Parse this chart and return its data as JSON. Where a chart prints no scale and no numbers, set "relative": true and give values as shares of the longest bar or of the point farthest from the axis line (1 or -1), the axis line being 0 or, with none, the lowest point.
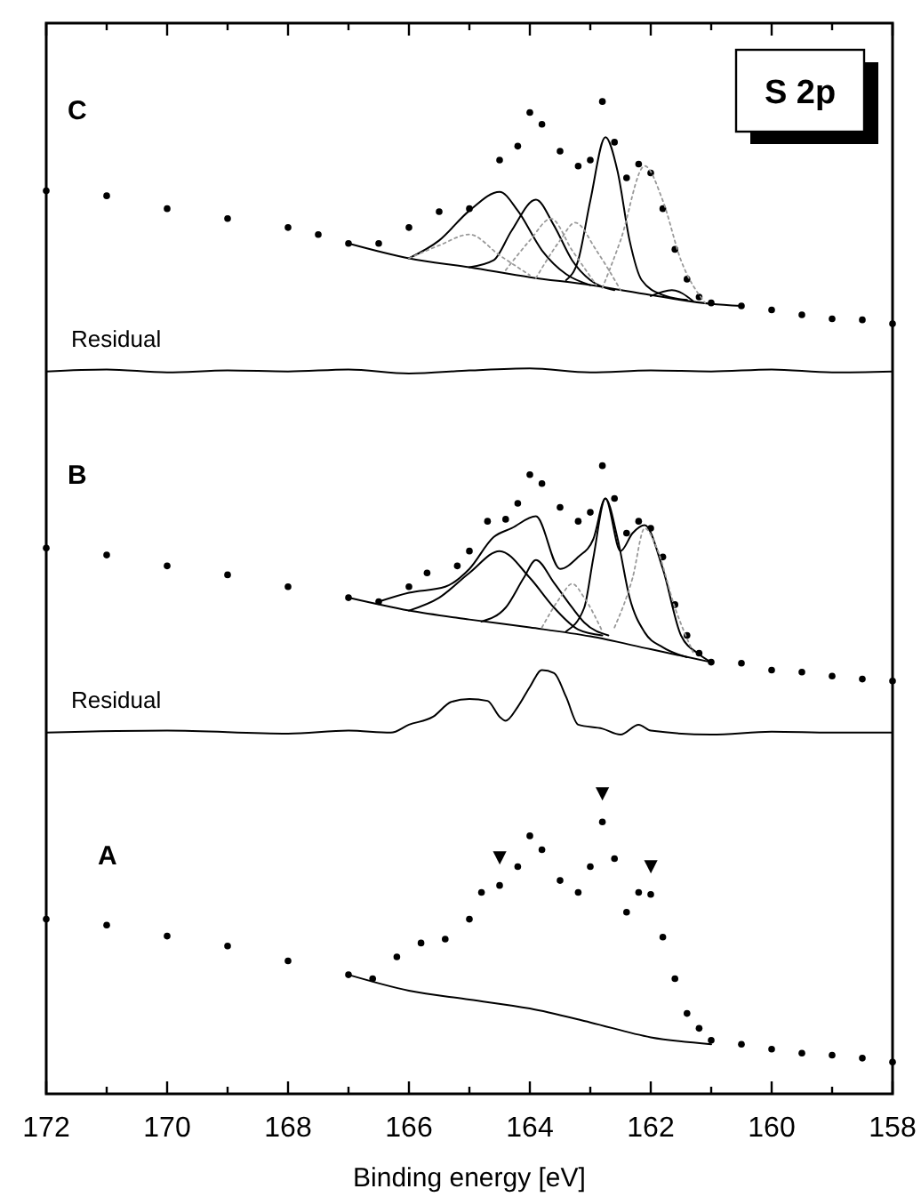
{
  "chart_data": {
    "type": "line",
    "title": "S 2p",
    "xlabel": "Binding energy [eV]",
    "relative": true,
    "xlim": [
      172,
      158
    ],
    "xticks": [
      172,
      {
        "value": 171,
        "label": null
      },
      170,
      {
        "value": 169,
        "label": null
      },
      168,
      {
        "value": 167,
        "label": null
      },
      166,
      {
        "value": 165,
        "label": null
      },
      164,
      {
        "value": 163,
        "label": null
      },
      162,
      {
        "value": 161,
        "label": null
      },
      160,
      {
        "value": 159,
        "label": null
      },
      158
    ],
    "annotations": [
      "C",
      "Residual",
      "B",
      "Residual",
      "A",
      {
        "text": "▼",
        "x": 164.5,
        "y": 0.21
      },
      {
        "text": "▼",
        "x": 162.8,
        "y": 0.274
      },
      {
        "text": "▼",
        "x": 162.0,
        "y": 0.201
      }
    ],
    "series": [
      {
        "type": "scatter",
        "marker": "circle",
        "color": "#000000",
        "x": [
          172,
          171,
          170,
          169,
          168,
          167.5,
          167,
          166.5,
          166,
          165.5,
          165,
          164.5,
          164.2,
          164,
          163.8,
          163.5,
          163.2,
          163,
          162.8,
          162.6,
          162.4,
          162.2,
          162,
          161.8,
          161.6,
          161.4,
          161.2,
          161,
          160.5,
          160,
          159.5,
          159,
          158.5,
          158
        ],
        "values": [
          0.91,
          0.905,
          0.892,
          0.882,
          0.873,
          0.866,
          0.857,
          0.857,
          0.873,
          0.889,
          0.892,
          0.941,
          0.955,
          0.989,
          0.977,
          0.95,
          0.935,
          0.941,
          1.0,
          0.959,
          0.923,
          0.937,
          0.928,
          0.892,
          0.851,
          0.821,
          0.803,
          0.797,
          0.794,
          0.79,
          0.785,
          0.781,
          0.78,
          0.776
        ]
      },
      {
        "color": "#000000",
        "x": [
          167,
          166,
          165,
          164,
          163,
          162,
          161,
          160.5
        ],
        "values": [
          0.857,
          0.842,
          0.833,
          0.823,
          0.815,
          0.805,
          0.796,
          0.794
        ]
      },
      {
        "color": "#000000",
        "x": [
          166,
          165.5,
          165,
          164.5,
          164.2,
          163.8,
          163.4,
          163
        ],
        "values": [
          0.842,
          0.86,
          0.89,
          0.909,
          0.89,
          0.85,
          0.826,
          0.815
        ]
      },
      {
        "color": "#000000",
        "x": [
          165,
          164.6,
          164.3,
          163.9,
          163.6,
          163.3,
          163,
          162.6
        ],
        "values": [
          0.833,
          0.84,
          0.87,
          0.901,
          0.875,
          0.84,
          0.82,
          0.81
        ]
      },
      {
        "color": "#000000",
        "x": [
          163.4,
          163.2,
          163,
          162.75,
          162.55,
          162.35,
          162.15,
          161.8,
          161.4
        ],
        "values": [
          0.82,
          0.84,
          0.9,
          0.964,
          0.93,
          0.86,
          0.82,
          0.805,
          0.8
        ]
      },
      {
        "color": "#000000",
        "x": [
          162,
          161.65,
          161.3
        ],
        "values": [
          0.804,
          0.81,
          0.799
        ]
      },
      {
        "color": "#999999",
        "line_style": "dotted",
        "x": [
          166,
          165.5,
          165,
          164.5,
          164
        ],
        "values": [
          0.842,
          0.855,
          0.866,
          0.845,
          0.825
        ]
      },
      {
        "color": "#999999",
        "line_style": "dotted",
        "x": [
          164.4,
          164,
          163.65,
          163.3,
          162.9
        ],
        "values": [
          0.83,
          0.86,
          0.882,
          0.85,
          0.815
        ]
      },
      {
        "color": "#999999",
        "line_style": "dotted",
        "x": [
          163.9,
          163.5,
          163.25,
          162.9,
          162.5
        ],
        "values": [
          0.822,
          0.86,
          0.878,
          0.85,
          0.81
        ]
      },
      {
        "color": "#999999",
        "line_style": "dotted",
        "x": [
          162.8,
          162.5,
          162.1,
          161.8,
          161.5,
          161.1
        ],
        "values": [
          0.812,
          0.86,
          0.935,
          0.9,
          0.84,
          0.797
        ]
      },
      {
        "color": "#000000",
        "x": [
          172,
          171,
          170,
          169,
          168,
          167,
          166,
          165,
          164,
          163,
          162,
          161,
          160,
          159,
          158
        ],
        "values": [
          0.728,
          0.73,
          0.727,
          0.729,
          0.728,
          0.73,
          0.726,
          0.729,
          0.731,
          0.727,
          0.729,
          0.728,
          0.73,
          0.727,
          0.728
        ]
      },
      {
        "type": "scatter",
        "marker": "circle",
        "color": "#000000",
        "x": [
          172,
          171,
          170,
          169,
          168,
          167,
          166.5,
          166,
          165.7,
          165.2,
          165,
          164.7,
          164.4,
          164.2,
          164,
          163.8,
          163.5,
          163.2,
          163,
          162.8,
          162.6,
          162.4,
          162.2,
          162,
          161.8,
          161.6,
          161.4,
          161.2,
          161,
          160.5,
          160,
          159.5,
          159,
          158.5,
          158
        ],
        "values": [
          0.55,
          0.543,
          0.532,
          0.523,
          0.511,
          0.5,
          0.496,
          0.511,
          0.525,
          0.532,
          0.547,
          0.577,
          0.579,
          0.595,
          0.624,
          0.615,
          0.591,
          0.577,
          0.586,
          0.633,
          0.6,
          0.565,
          0.577,
          0.57,
          0.541,
          0.493,
          0.462,
          0.444,
          0.435,
          0.434,
          0.427,
          0.425,
          0.421,
          0.418,
          0.416
        ]
      },
      {
        "color": "#000000",
        "x": [
          166.5,
          166,
          165.4,
          165,
          164.6,
          164.3,
          163.9,
          163.5,
          163.2,
          162.95,
          162.75,
          162.5,
          162.3,
          162.1,
          161.8,
          161.5,
          161.2,
          161
        ],
        "values": [
          0.496,
          0.505,
          0.511,
          0.529,
          0.561,
          0.57,
          0.582,
          0.529,
          0.541,
          0.559,
          0.6,
          0.547,
          0.565,
          0.573,
          0.529,
          0.462,
          0.443,
          0.435
        ]
      },
      {
        "color": "#000000",
        "x": [
          167,
          166,
          165,
          164,
          163,
          162,
          161
        ],
        "values": [
          0.5,
          0.487,
          0.478,
          0.47,
          0.461,
          0.448,
          0.435
        ]
      },
      {
        "color": "#000000",
        "x": [
          166,
          165.5,
          165,
          164.5,
          164,
          163.6,
          163.2,
          162.8
        ],
        "values": [
          0.487,
          0.5,
          0.525,
          0.547,
          0.52,
          0.49,
          0.468,
          0.462
        ]
      },
      {
        "color": "#000000",
        "x": [
          164.8,
          164.4,
          164.1,
          163.9,
          163.6,
          163.3,
          163.1,
          162.7
        ],
        "values": [
          0.476,
          0.49,
          0.52,
          0.538,
          0.515,
          0.49,
          0.475,
          0.462
        ]
      },
      {
        "color": "#000000",
        "x": [
          163.4,
          163.1,
          162.95,
          162.75,
          162.55,
          162.35,
          162.1,
          161.8,
          161.4
        ],
        "values": [
          0.466,
          0.49,
          0.54,
          0.6,
          0.56,
          0.5,
          0.465,
          0.45,
          0.44
        ]
      },
      {
        "color": "#999999",
        "line_style": "dotted",
        "x": [
          163.8,
          163.5,
          163.3,
          163.1,
          162.8
        ],
        "values": [
          0.47,
          0.5,
          0.514,
          0.5,
          0.466
        ]
      },
      {
        "color": "#999999",
        "line_style": "dotted",
        "x": [
          162.6,
          162.3,
          162.1,
          161.9,
          161.6,
          161.3
        ],
        "values": [
          0.47,
          0.52,
          0.57,
          0.55,
          0.49,
          0.445
        ]
      },
      {
        "color": "#000000",
        "x": [
          172,
          170,
          168,
          167,
          166.3,
          166,
          165.6,
          165.3,
          165,
          164.7,
          164.5,
          164.4,
          164.2,
          164,
          163.8,
          163.6,
          163.4,
          163.2,
          162.8,
          162.5,
          162.2,
          162,
          161,
          160,
          159,
          158
        ],
        "values": [
          0.364,
          0.366,
          0.363,
          0.366,
          0.364,
          0.372,
          0.38,
          0.395,
          0.398,
          0.396,
          0.38,
          0.376,
          0.39,
          0.41,
          0.427,
          0.424,
          0.4,
          0.372,
          0.368,
          0.362,
          0.372,
          0.366,
          0.362,
          0.365,
          0.364,
          0.364
        ]
      },
      {
        "type": "scatter",
        "marker": "circle",
        "color": "#000000",
        "x": [
          172,
          171,
          170,
          169,
          168,
          167,
          166.6,
          166.2,
          165.8,
          165.4,
          165,
          164.8,
          164.5,
          164.2,
          164,
          163.8,
          163.5,
          163.2,
          163,
          162.8,
          162.6,
          162.4,
          162.2,
          162,
          161.8,
          161.6,
          161.4,
          161.2,
          161,
          160.5,
          160,
          159.5,
          159,
          158.5,
          158
        ],
        "values": [
          0.176,
          0.17,
          0.159,
          0.149,
          0.134,
          0.12,
          0.116,
          0.138,
          0.152,
          0.156,
          0.176,
          0.203,
          0.21,
          0.229,
          0.26,
          0.246,
          0.215,
          0.203,
          0.229,
          0.274,
          0.237,
          0.183,
          0.203,
          0.201,
          0.158,
          0.116,
          0.081,
          0.066,
          0.054,
          0.05,
          0.045,
          0.041,
          0.039,
          0.036,
          0.032
        ]
      },
      {
        "color": "#000000",
        "x": [
          167,
          166,
          165,
          164,
          163,
          162,
          161
        ],
        "values": [
          0.12,
          0.104,
          0.095,
          0.086,
          0.072,
          0.057,
          0.05
        ]
      }
    ]
  }
}
